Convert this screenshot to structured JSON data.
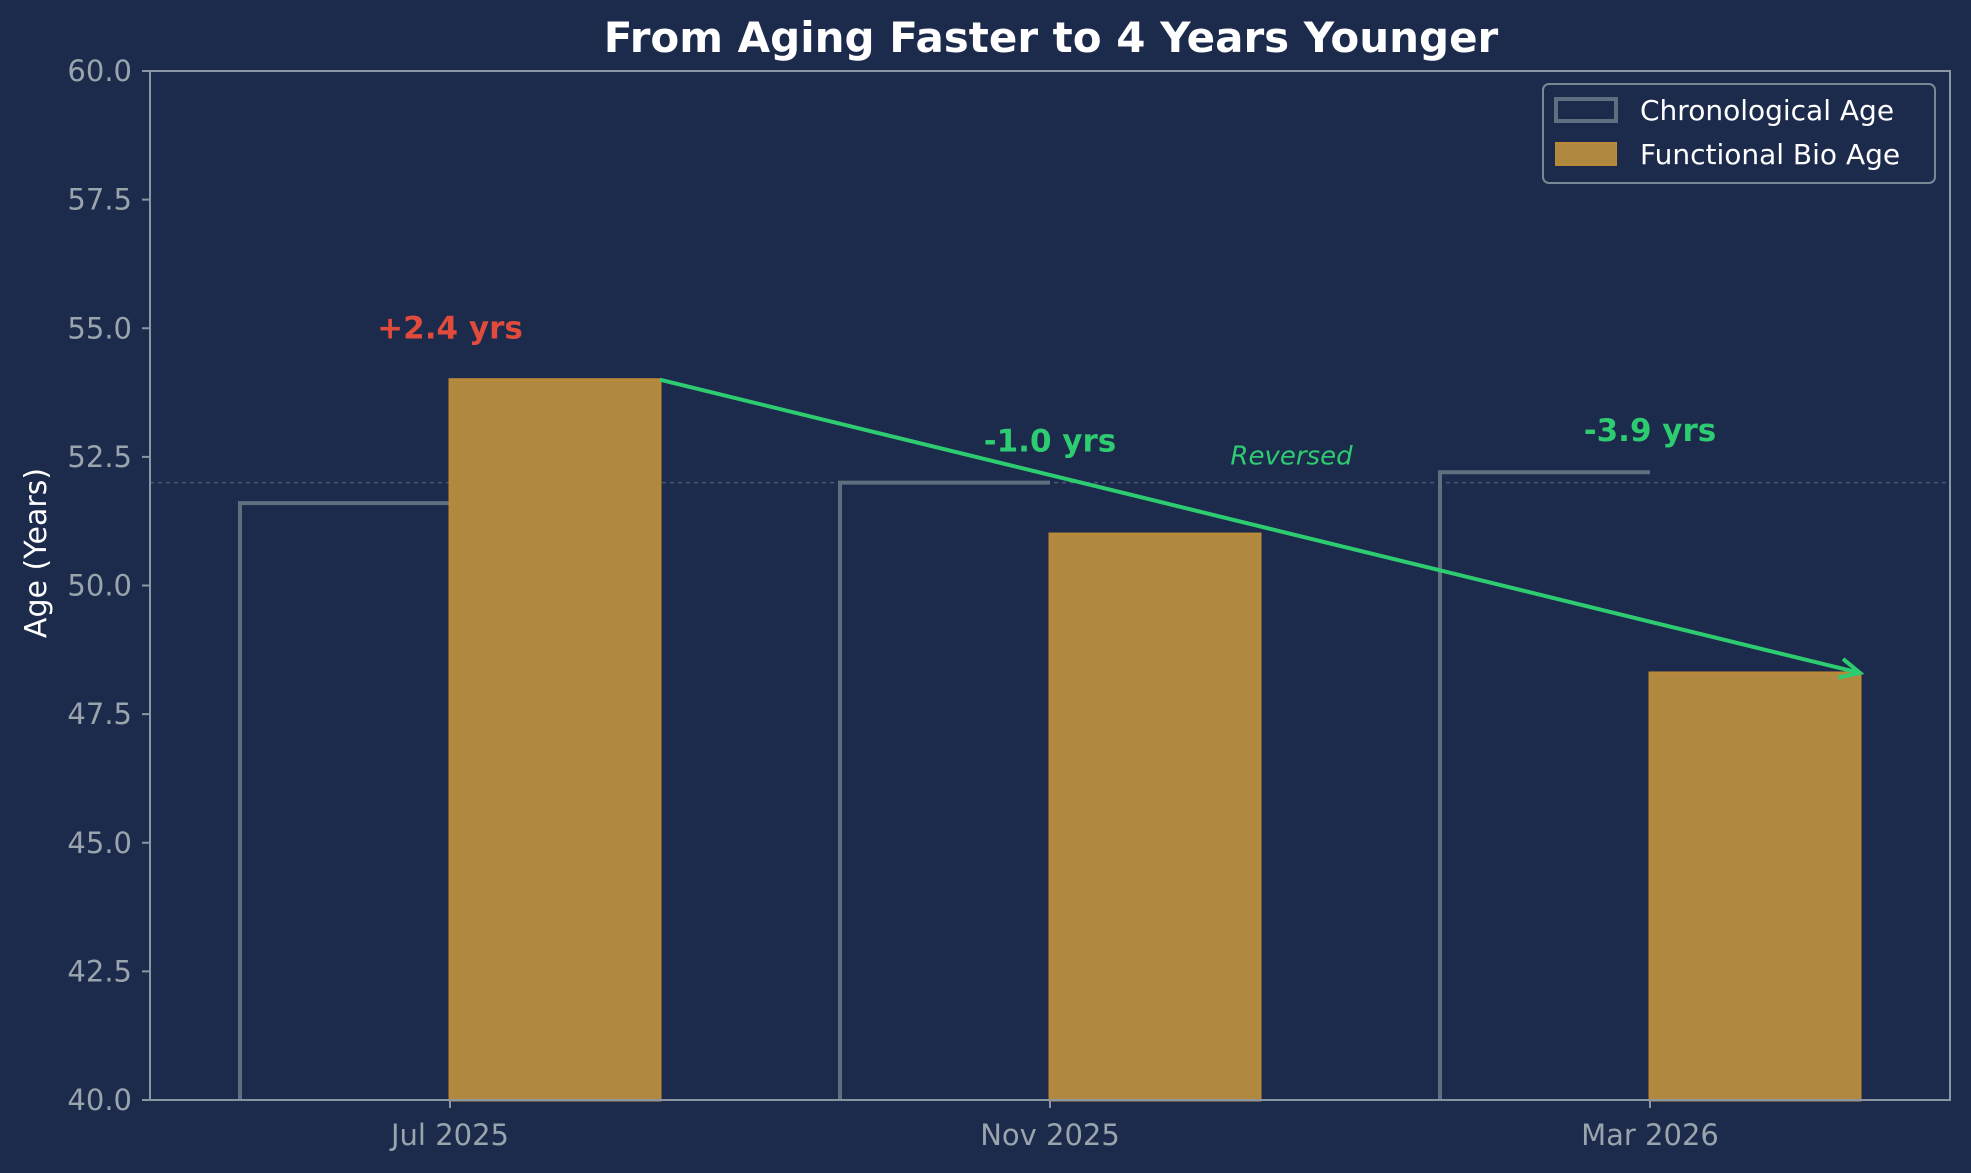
{
  "chart_data": {
    "type": "bar",
    "title": "From Aging Faster to 4 Years Younger",
    "xlabel": "",
    "ylabel": "Age (Years)",
    "categories": [
      "Jul 2025",
      "Nov 2025",
      "Mar 2026"
    ],
    "series": [
      {
        "name": "Chronological Age",
        "values": [
          51.6,
          52.0,
          52.2
        ],
        "style": "outline",
        "color": "#5f6f80"
      },
      {
        "name": "Functional Bio Age",
        "values": [
          54.0,
          51.0,
          48.3
        ],
        "style": "filled",
        "color": "#b0883f"
      }
    ],
    "ylim": [
      40,
      60
    ],
    "yticks": [
      "40.0",
      "42.5",
      "45.0",
      "47.5",
      "50.0",
      "52.5",
      "55.0",
      "57.5",
      "60.0"
    ],
    "reference_line": 52.0,
    "annotations": [
      {
        "text": "+2.4 yrs",
        "category": "Jul 2025",
        "y": 55.0,
        "color": "#e04b3c"
      },
      {
        "text": "-1.0 yrs",
        "category": "Nov 2025",
        "y": 52.8,
        "color": "#2ecc71"
      },
      {
        "text": "-3.9 yrs",
        "category": "Mar 2026",
        "y": 53.0,
        "color": "#2ecc71"
      }
    ],
    "trend_arrow": {
      "from": 54.0,
      "to": 48.3,
      "label": "Reversed",
      "color": "#2ecc71"
    },
    "legend": "top-right",
    "grid": false
  },
  "colors": {
    "background": "#1c2a4b",
    "axis": "#8a96a2"
  }
}
